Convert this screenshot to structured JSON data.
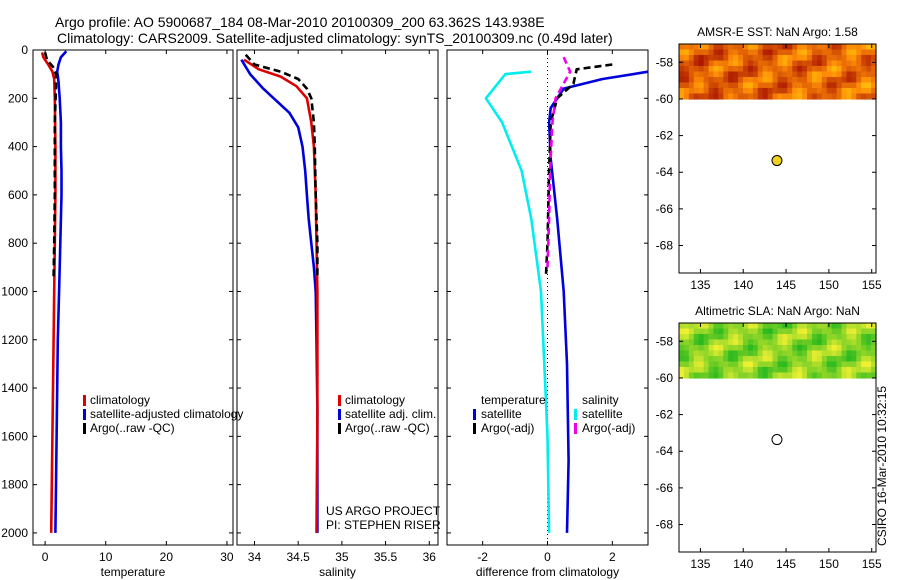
{
  "title": {
    "line1": "Argo profile: AO 5900687_184 08-Mar-2010 20100309_200 63.362S 143.938E",
    "line2": "Climatology: CARS2009. Satellite-adjusted climatology: synTS_20100309.nc (0.49d later)"
  },
  "chart_data": [
    {
      "id": "temperature",
      "type": "line",
      "xlabel": "temperature",
      "xlim": [
        -2,
        31
      ],
      "ylim": [
        0,
        2050
      ],
      "yreverse": true,
      "xticks": [
        0,
        10,
        20,
        30
      ],
      "yticks": [
        0,
        200,
        400,
        600,
        800,
        1000,
        1200,
        1400,
        1600,
        1800,
        2000
      ],
      "series": [
        {
          "name": "satellite-adjusted climatology",
          "color": "#0000dd",
          "dash": "",
          "points": [
            [
              3.5,
              5
            ],
            [
              2.6,
              30
            ],
            [
              2.2,
              60
            ],
            [
              2.0,
              90
            ],
            [
              2.2,
              130
            ],
            [
              2.4,
              200
            ],
            [
              2.6,
              300
            ],
            [
              2.6,
              400
            ],
            [
              2.7,
              500
            ],
            [
              2.7,
              600
            ],
            [
              2.5,
              800
            ],
            [
              2.3,
              1000
            ],
            [
              2.1,
              1200
            ],
            [
              2.0,
              1400
            ],
            [
              1.9,
              1600
            ],
            [
              1.8,
              1800
            ],
            [
              1.7,
              2000
            ]
          ]
        },
        {
          "name": "climatology",
          "color": "#dd0000",
          "dash": "",
          "points": [
            [
              -0.5,
              10
            ],
            [
              -0.3,
              30
            ],
            [
              0.5,
              60
            ],
            [
              1.2,
              90
            ],
            [
              1.5,
              120
            ],
            [
              1.6,
              200
            ],
            [
              1.7,
              400
            ],
            [
              1.7,
              600
            ],
            [
              1.6,
              800
            ],
            [
              1.5,
              1000
            ],
            [
              1.4,
              1200
            ],
            [
              1.3,
              1400
            ],
            [
              1.2,
              1600
            ],
            [
              1.1,
              1800
            ],
            [
              1.0,
              2000
            ]
          ]
        },
        {
          "name": "Argo(..raw -QC)",
          "color": "#000000",
          "dash": "7,4",
          "points": [
            [
              0.0,
              10
            ],
            [
              0.3,
              40
            ],
            [
              1.3,
              70
            ],
            [
              1.8,
              100
            ],
            [
              1.8,
              150
            ],
            [
              1.6,
              300
            ],
            [
              1.6,
              600
            ],
            [
              1.5,
              800
            ],
            [
              1.4,
              940
            ]
          ]
        }
      ],
      "legend": {
        "placement": "lower-center",
        "entries": [
          {
            "label": "climatology",
            "color": "#dd0000"
          },
          {
            "label": "satellite-adjusted climatology",
            "color": "#0000dd"
          },
          {
            "label": "Argo(..raw -QC)",
            "color": "#000000"
          }
        ]
      }
    },
    {
      "id": "salinity",
      "type": "line",
      "xlabel": "salinity",
      "xlim": [
        33.8,
        36.1
      ],
      "ylim": [
        0,
        2050
      ],
      "yreverse": true,
      "xticks": [
        34,
        34.5,
        35,
        35.5,
        36
      ],
      "xticklabels": [
        "34",
        "34.5",
        "35",
        "35.5",
        "36"
      ],
      "yticks": [
        0,
        200,
        400,
        600,
        800,
        1000,
        1200,
        1400,
        1600,
        1800,
        2000
      ],
      "series": [
        {
          "name": "satellite adj. clim.",
          "color": "#0000dd",
          "dash": "",
          "points": [
            [
              33.85,
              40
            ],
            [
              33.95,
              100
            ],
            [
              34.1,
              160
            ],
            [
              34.22,
              200
            ],
            [
              34.4,
              260
            ],
            [
              34.5,
              320
            ],
            [
              34.55,
              400
            ],
            [
              34.58,
              500
            ],
            [
              34.6,
              600
            ],
            [
              34.62,
              700
            ],
            [
              34.65,
              800
            ],
            [
              34.68,
              900
            ],
            [
              34.7,
              1000
            ],
            [
              34.71,
              1200
            ],
            [
              34.72,
              1500
            ],
            [
              34.72,
              2000
            ]
          ]
        },
        {
          "name": "climatology",
          "color": "#dd0000",
          "dash": "",
          "points": [
            [
              33.88,
              40
            ],
            [
              34.05,
              80
            ],
            [
              34.3,
              110
            ],
            [
              34.48,
              150
            ],
            [
              34.6,
              200
            ],
            [
              34.65,
              300
            ],
            [
              34.68,
              400
            ],
            [
              34.7,
              600
            ],
            [
              34.71,
              800
            ],
            [
              34.72,
              1000
            ],
            [
              34.72,
              1200
            ],
            [
              34.72,
              1500
            ],
            [
              34.71,
              2000
            ]
          ]
        },
        {
          "name": "Argo(..raw -QC)",
          "color": "#000000",
          "dash": "7,4",
          "points": [
            [
              33.9,
              20
            ],
            [
              34.0,
              60
            ],
            [
              34.3,
              90
            ],
            [
              34.5,
              120
            ],
            [
              34.6,
              160
            ],
            [
              34.65,
              200
            ],
            [
              34.68,
              300
            ],
            [
              34.69,
              400
            ],
            [
              34.7,
              600
            ],
            [
              34.72,
              800
            ],
            [
              34.72,
              940
            ]
          ]
        }
      ],
      "legend": {
        "placement": "lower-right",
        "entries": [
          {
            "label": "climatology",
            "color": "#dd0000"
          },
          {
            "label": "satellite adj. clim.",
            "color": "#0000dd"
          },
          {
            "label": "Argo(..raw -QC)",
            "color": "#000000"
          }
        ]
      },
      "credit": [
        "US ARGO PROJECT",
        "PI: STEPHEN RISER"
      ]
    },
    {
      "id": "difference",
      "type": "line",
      "xlabel": "difference from climatology",
      "xlim": [
        -3.1,
        3.1
      ],
      "ylim": [
        0,
        2050
      ],
      "yreverse": true,
      "xticks": [
        -2,
        0,
        2
      ],
      "yticks": [
        0,
        200,
        400,
        600,
        800,
        1000,
        1200,
        1400,
        1600,
        1800,
        2000
      ],
      "series": [
        {
          "name": "temperature satellite",
          "color": "#0000dd",
          "dash": "",
          "points": [
            [
              3.1,
              90
            ],
            [
              1.7,
              120
            ],
            [
              0.5,
              160
            ],
            [
              0.1,
              240
            ],
            [
              0.05,
              300
            ],
            [
              0.1,
              450
            ],
            [
              0.3,
              700
            ],
            [
              0.5,
              1000
            ],
            [
              0.6,
              1300
            ],
            [
              0.65,
              1700
            ],
            [
              0.6,
              2000
            ]
          ]
        },
        {
          "name": "salinity satellite",
          "color": "#00eeee",
          "dash": "",
          "points": [
            [
              -0.5,
              90
            ],
            [
              -1.3,
              100
            ],
            [
              -1.9,
              200
            ],
            [
              -1.4,
              300
            ],
            [
              -0.8,
              500
            ],
            [
              -0.5,
              700
            ],
            [
              -0.2,
              1000
            ],
            [
              -0.1,
              1300
            ],
            [
              0.0,
              1600
            ],
            [
              0.05,
              2000
            ]
          ]
        },
        {
          "name": "temperature Argo(-adj)",
          "color": "#000000",
          "dash": "7,4",
          "points": [
            [
              2.0,
              60
            ],
            [
              0.9,
              80
            ],
            [
              0.8,
              140
            ],
            [
              0.3,
              200
            ],
            [
              0.1,
              300
            ],
            [
              0.05,
              500
            ],
            [
              0.0,
              800
            ],
            [
              -0.05,
              940
            ]
          ]
        },
        {
          "name": "salinity Argo(-adj)",
          "color": "#ee00ee",
          "dash": "7,4",
          "points": [
            [
              0.5,
              30
            ],
            [
              0.7,
              90
            ],
            [
              0.25,
              200
            ],
            [
              0.15,
              300
            ],
            [
              0.08,
              500
            ],
            [
              0.05,
              700
            ],
            [
              0.0,
              900
            ]
          ]
        }
      ],
      "legend": {
        "placement": "lower-center",
        "groups": [
          {
            "header": "temperature",
            "entries": [
              {
                "label": "satellite",
                "color": "#0000dd"
              },
              {
                "label": "Argo(-adj)",
                "color": "#000000"
              }
            ]
          },
          {
            "header": "salinity",
            "entries": [
              {
                "label": "satellite",
                "color": "#00eeee"
              },
              {
                "label": "Argo(-adj)",
                "color": "#ee00ee"
              }
            ]
          }
        ]
      }
    },
    {
      "id": "sst-map",
      "type": "heatmap",
      "title": "AMSR-E SST: NaN Argo: 1.58",
      "xlim": [
        132.5,
        155.5
      ],
      "ylim": [
        -69.5,
        -57
      ],
      "xticks": [
        135,
        140,
        145,
        150,
        155
      ],
      "yticks": [
        -58,
        -60,
        -62,
        -64,
        -66,
        -68
      ],
      "data_extent_lat": [
        -57,
        -60
      ],
      "palette": "hot",
      "marker": {
        "lon": 143.938,
        "lat": -63.362,
        "color": "#f0d020"
      }
    },
    {
      "id": "sla-map",
      "type": "heatmap",
      "title": "Altimetric SLA: NaN Argo: NaN",
      "xlim": [
        132.5,
        155.5
      ],
      "ylim": [
        -69.5,
        -57
      ],
      "xticks": [
        135,
        140,
        145,
        150,
        155
      ],
      "yticks": [
        -58,
        -60,
        -62,
        -64,
        -66,
        -68
      ],
      "data_extent_lat": [
        -57,
        -60
      ],
      "palette": "green",
      "marker": {
        "lon": 143.938,
        "lat": -63.362,
        "color": "#ffffff"
      }
    }
  ],
  "footer": {
    "stamp": "CSIRO 16-Mar-2010 10:32:15"
  }
}
